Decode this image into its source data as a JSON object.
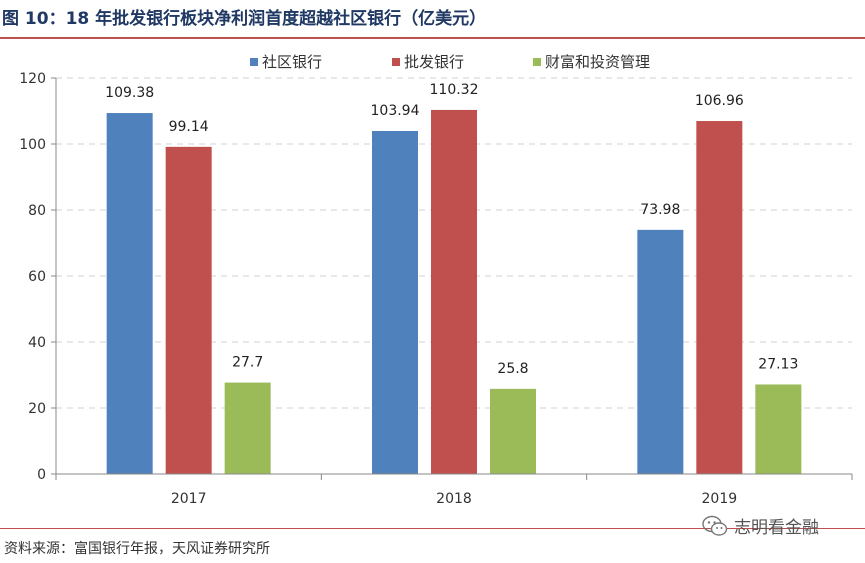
{
  "title": "图 10：18 年批发银行板块净利润首度超越社区银行（亿美元）",
  "source": "资料来源：富国银行年报，天风证券研究所",
  "watermark": "志明看金融",
  "chart_data": {
    "type": "bar",
    "categories": [
      "2017",
      "2018",
      "2019"
    ],
    "series": [
      {
        "name": "社区银行",
        "color": "#4f81bd",
        "values": [
          109.38,
          103.94,
          73.98
        ]
      },
      {
        "name": "批发银行",
        "color": "#c0504d",
        "values": [
          99.14,
          110.32,
          106.96
        ]
      },
      {
        "name": "财富和投资管理",
        "color": "#9bbb59",
        "values": [
          27.7,
          25.8,
          27.13
        ]
      }
    ],
    "ylim": [
      0,
      120
    ],
    "yticks": [
      0,
      20,
      40,
      60,
      80,
      100,
      120
    ],
    "grid": true,
    "legend": "top-center"
  }
}
